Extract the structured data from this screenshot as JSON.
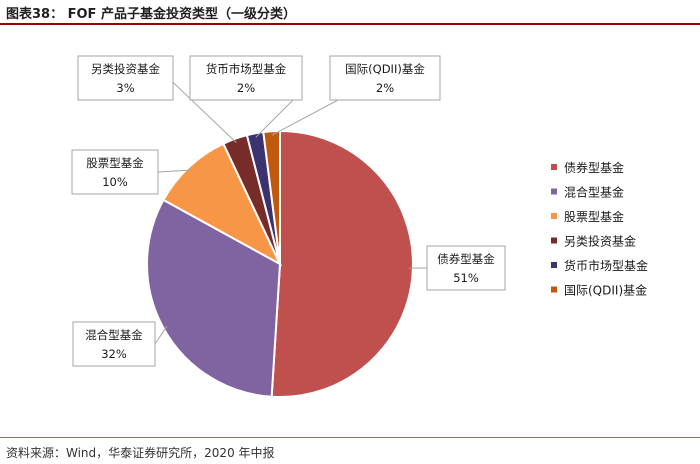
{
  "figure_title": "图表38： FOF 产品子基金投资类型（一级分类）",
  "source": "资料来源：Wind，华泰证券研究所，2020 年中报",
  "chart_data": {
    "type": "pie",
    "start_angle_deg": 0,
    "direction": "clockwise",
    "legend_position": "right",
    "slices": [
      {
        "name": "债券型基金",
        "value": 51,
        "label": "51%",
        "color": "#c0504d"
      },
      {
        "name": "混合型基金",
        "value": 32,
        "label": "32%",
        "color": "#8064a2"
      },
      {
        "name": "股票型基金",
        "value": 10,
        "label": "10%",
        "color": "#f79646"
      },
      {
        "name": "另类投资基金",
        "value": 3,
        "label": "3%",
        "color": "#772c2a"
      },
      {
        "name": "货币市场型基金",
        "value": 2,
        "label": "2%",
        "color": "#3c3270"
      },
      {
        "name": "国际(QDII)基金",
        "value": 2,
        "label": "2%",
        "color": "#c0580e"
      }
    ]
  }
}
